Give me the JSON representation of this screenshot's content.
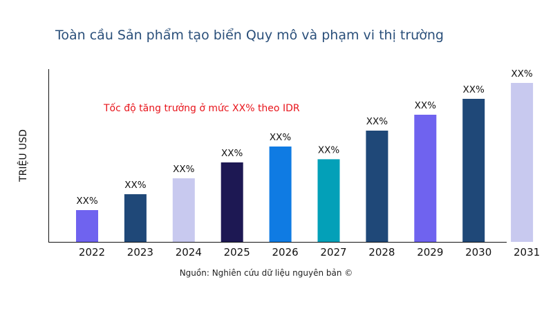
{
  "chart_data": {
    "type": "bar",
    "title": "Toàn cầu Sản phẩm tạo biển Quy mô và phạm vi thị trường",
    "ylabel": "TRIỆU USD",
    "xlabel": "",
    "categories": [
      "2022",
      "2023",
      "2024",
      "2025",
      "2026",
      "2027",
      "2028",
      "2029",
      "2030",
      "2031"
    ],
    "values": [
      2,
      3,
      4,
      5,
      6,
      5.2,
      7,
      8,
      9,
      10
    ],
    "data_labels": [
      "XX%",
      "XX%",
      "XX%",
      "XX%",
      "XX%",
      "XX%",
      "XX%",
      "XX%",
      "XX%",
      "XX%"
    ],
    "colors": [
      "#6f63ef",
      "#1f4878",
      "#c8c9ef",
      "#1d1853",
      "#0f7be3",
      "#03a0b8",
      "#1f4878",
      "#6f63ef",
      "#1f4878",
      "#c8c9ef"
    ],
    "ylim": [
      0,
      11
    ],
    "y_ticks_shown": false,
    "grid": false,
    "annotation": "Tốc độ tăng trưởng ở mức XX% theo IDR",
    "annotation_color": "#e8141b",
    "source": "Nguồn: Nghiên cứu dữ liệu nguyên bản ©"
  }
}
